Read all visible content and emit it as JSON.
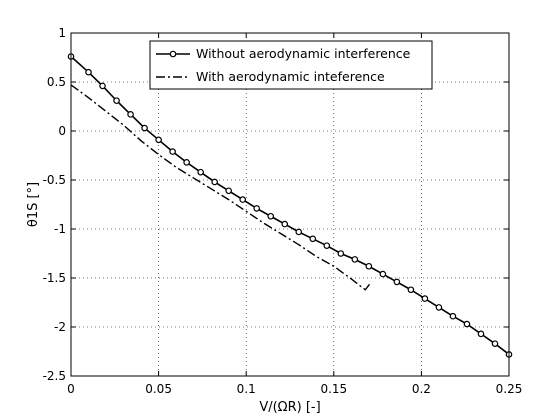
{
  "chart_data": {
    "type": "line",
    "title": "",
    "xlabel": "V/(ΩR) [-]",
    "ylabel": "θ1S [°]",
    "xlim": [
      0,
      0.25
    ],
    "ylim": [
      -2.5,
      1
    ],
    "grid": true,
    "legend_position": "top-center",
    "x_ticks": [
      0,
      0.05,
      0.1,
      0.15,
      0.2,
      0.25
    ],
    "x_tick_labels": [
      "0",
      "0.05",
      "0.1",
      "0.15",
      "0.2",
      "0.25"
    ],
    "y_ticks": [
      -2.5,
      -2,
      -1.5,
      -1,
      -0.5,
      0,
      0.5,
      1
    ],
    "y_tick_labels": [
      "-2.5",
      "-2",
      "-1.5",
      "-1",
      "-0.5",
      "0",
      "0.5",
      "1"
    ],
    "series": [
      {
        "name": "Without aerodynamic interference",
        "line_style": "solid",
        "marker": "circle",
        "x": [
          0,
          0.01,
          0.018,
          0.026,
          0.034,
          0.042,
          0.05,
          0.058,
          0.066,
          0.074,
          0.082,
          0.09,
          0.098,
          0.106,
          0.114,
          0.122,
          0.13,
          0.138,
          0.146,
          0.154,
          0.162,
          0.17,
          0.178,
          0.186,
          0.194,
          0.202,
          0.21,
          0.218,
          0.226,
          0.234,
          0.242,
          0.25
        ],
        "y": [
          0.76,
          0.6,
          0.46,
          0.31,
          0.17,
          0.03,
          -0.09,
          -0.21,
          -0.32,
          -0.42,
          -0.52,
          -0.61,
          -0.7,
          -0.79,
          -0.87,
          -0.95,
          -1.03,
          -1.1,
          -1.17,
          -1.25,
          -1.31,
          -1.38,
          -1.46,
          -1.54,
          -1.62,
          -1.71,
          -1.8,
          -1.89,
          -1.97,
          -2.07,
          -2.17,
          -2.28
        ]
      },
      {
        "name": "With aerodynamic inteference",
        "line_style": "dashdot",
        "marker": "none",
        "x": [
          0,
          0.01,
          0.02,
          0.03,
          0.04,
          0.05,
          0.06,
          0.07,
          0.08,
          0.09,
          0.1,
          0.11,
          0.12,
          0.13,
          0.14,
          0.15,
          0.16,
          0.165,
          0.168,
          0.171
        ],
        "y": [
          0.47,
          0.34,
          0.2,
          0.06,
          -0.1,
          -0.24,
          -0.37,
          -0.48,
          -0.59,
          -0.7,
          -0.82,
          -0.94,
          -1.05,
          -1.16,
          -1.28,
          -1.38,
          -1.51,
          -1.58,
          -1.62,
          -1.55
        ]
      }
    ]
  }
}
